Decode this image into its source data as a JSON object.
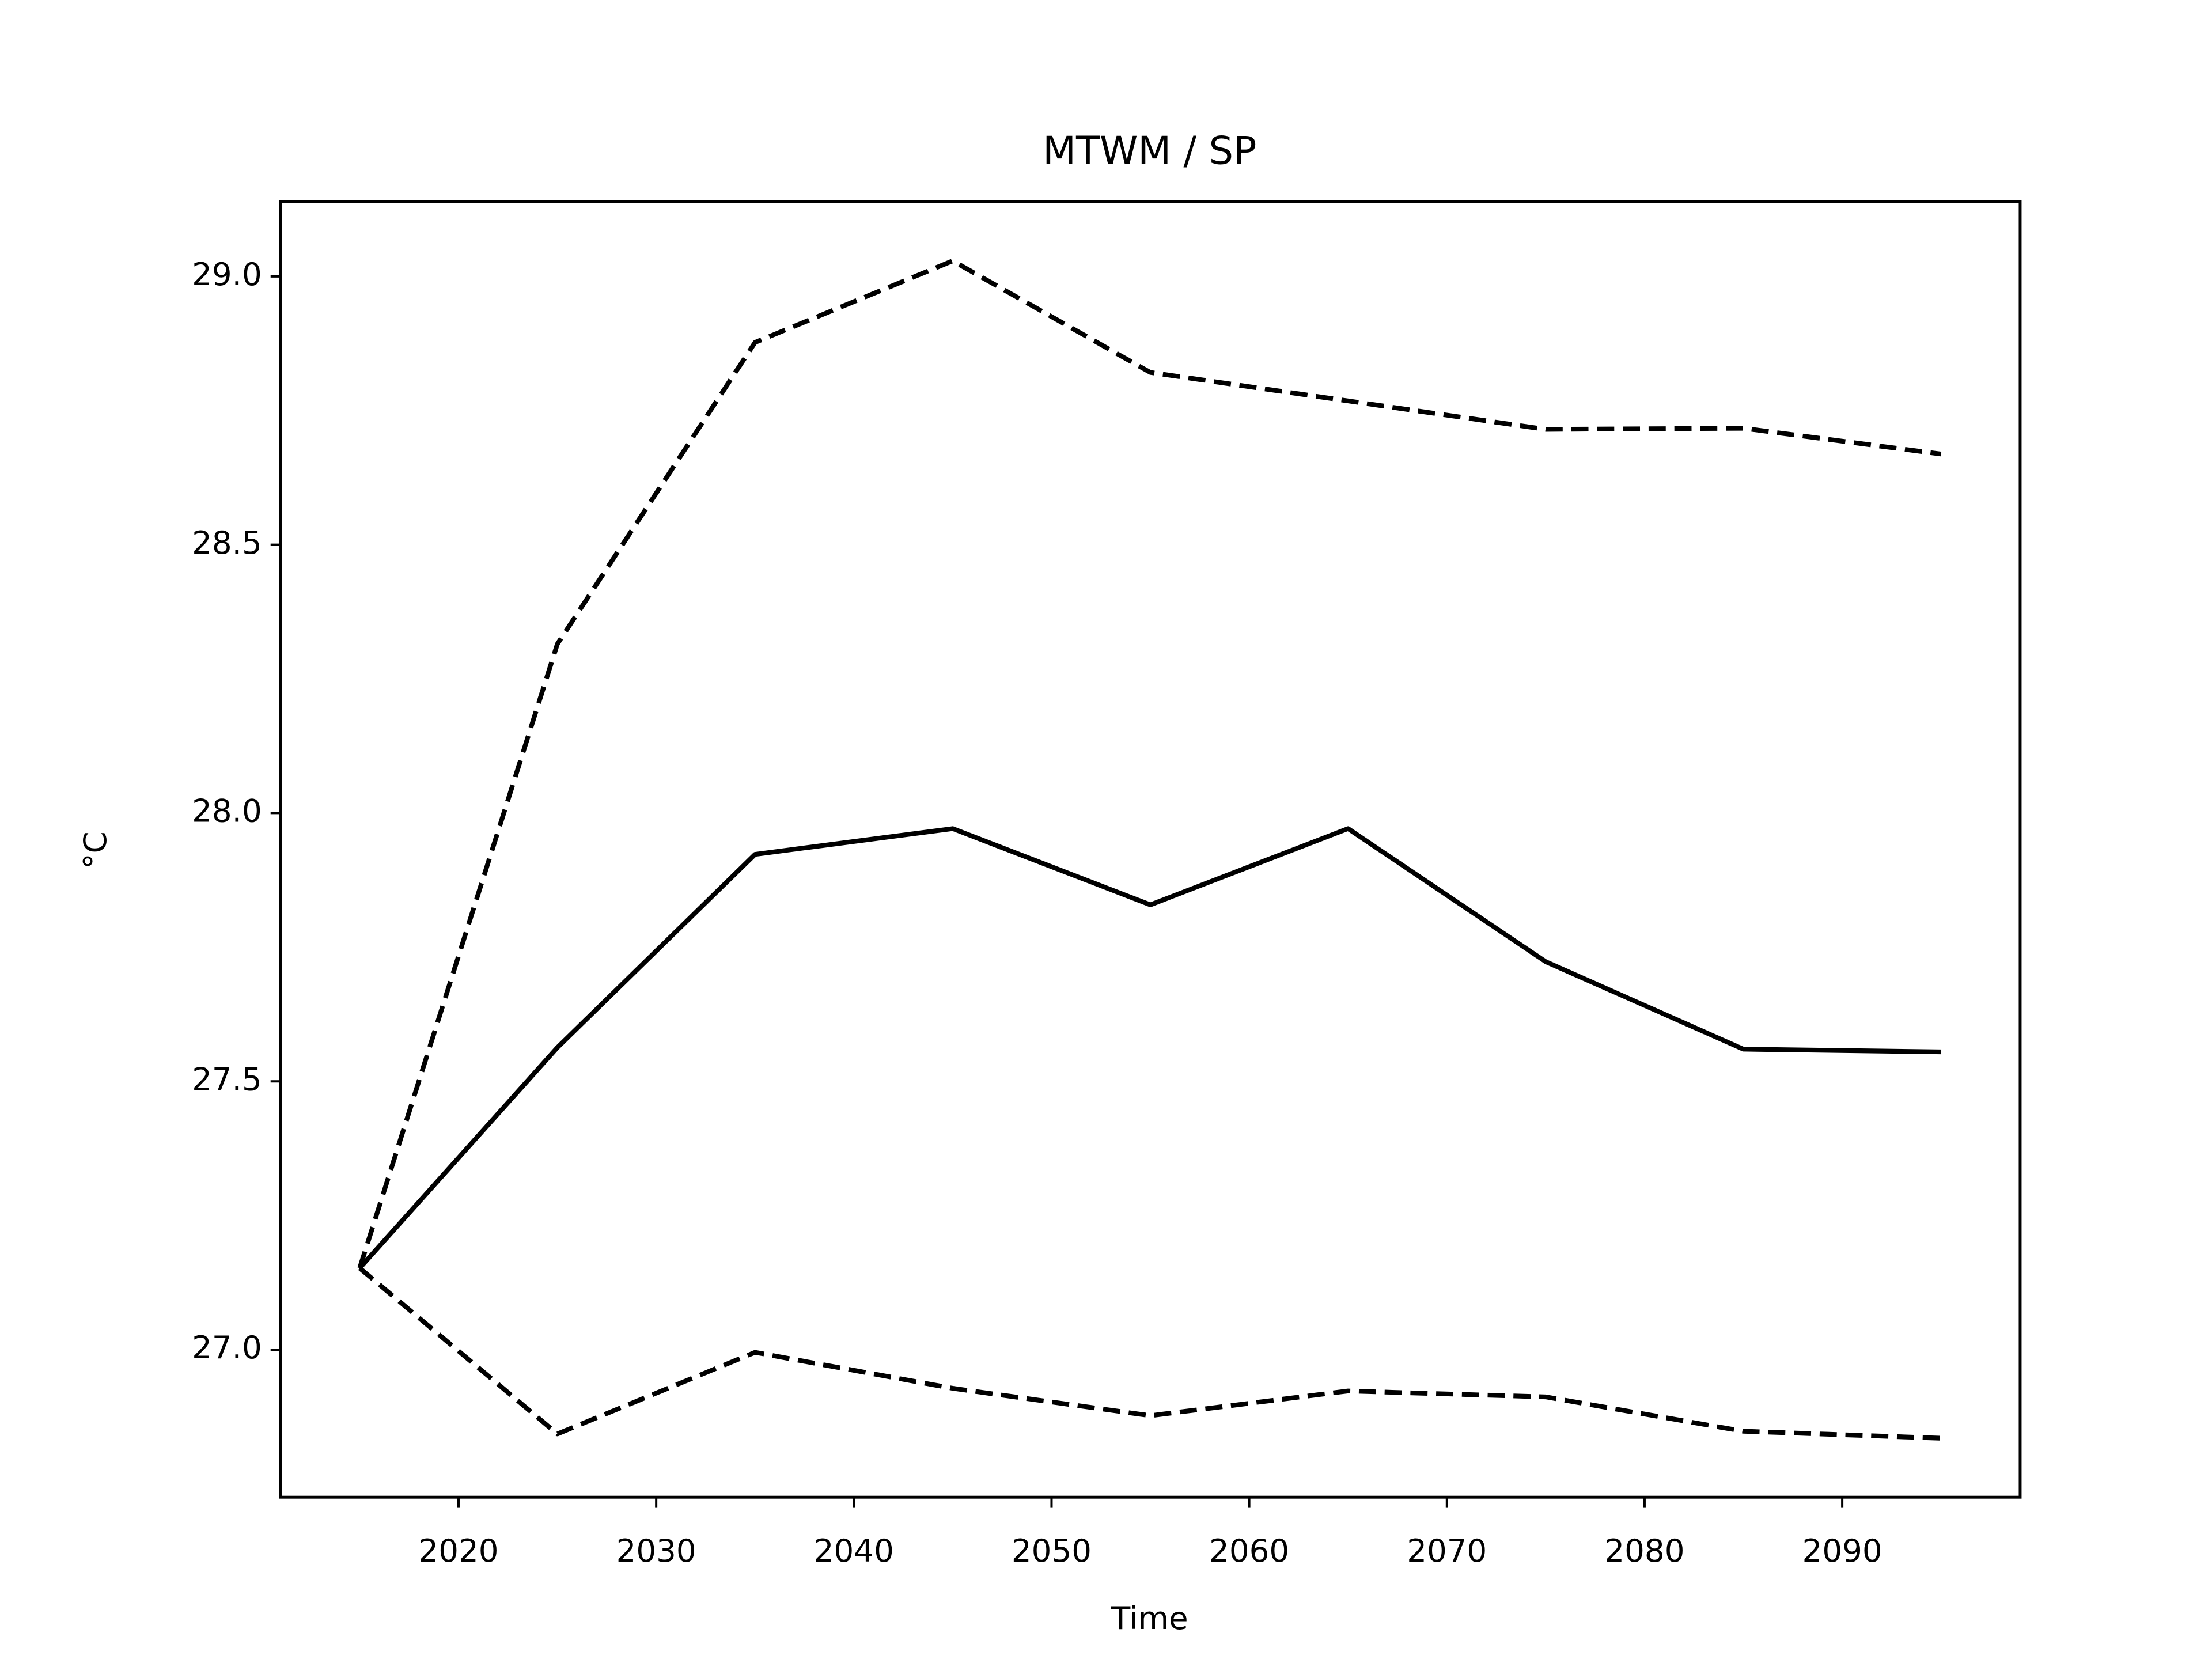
{
  "chart_data": {
    "type": "line",
    "title": "MTWM / SP",
    "x_label": "Time",
    "y_label": "°C",
    "x": [
      2015,
      2025,
      2035,
      2045,
      2055,
      2065,
      2075,
      2085,
      2095
    ],
    "series": [
      {
        "color": "#000000",
        "linestyle": "solid",
        "values": [
          27.152,
          27.563,
          27.923,
          27.971,
          27.829,
          27.971,
          27.723,
          27.56,
          27.555
        ]
      },
      {
        "color": "#000000",
        "linestyle": "dashed",
        "values": [
          27.152,
          28.315,
          28.877,
          29.029,
          28.821,
          28.768,
          28.715,
          28.717,
          28.669
        ]
      },
      {
        "color": "#000000",
        "linestyle": "dashed",
        "values": [
          27.152,
          26.843,
          26.995,
          26.928,
          26.877,
          26.923,
          26.912,
          26.848,
          26.835
        ]
      }
    ],
    "xlim": [
      2011,
      2099
    ],
    "ylim": [
      26.725,
      29.139
    ],
    "xticks": [
      2020,
      2030,
      2040,
      2050,
      2060,
      2070,
      2080,
      2090
    ],
    "yticks": [
      {
        "value": 27.0,
        "label": "27.0"
      },
      {
        "value": 27.5,
        "label": "27.5"
      },
      {
        "value": 28.0,
        "label": "28.0"
      },
      {
        "value": 28.5,
        "label": "28.5"
      },
      {
        "value": 29.0,
        "label": "29.0"
      }
    ],
    "grid": false
  }
}
